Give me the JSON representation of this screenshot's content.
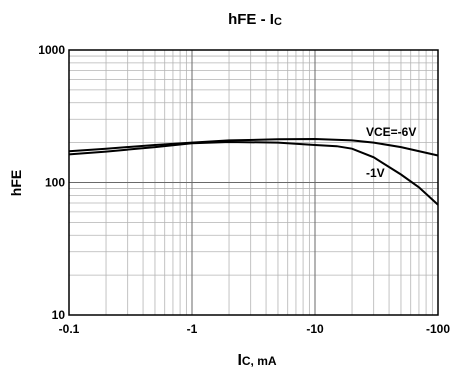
{
  "chart_data": {
    "type": "line",
    "title": "hFE - Ic",
    "title_main": "hFE - I",
    "title_sub": "C",
    "xlabel": "Ic, mA",
    "xlabel_main": "I",
    "xlabel_sub": "C, mA",
    "ylabel": "hFE",
    "x_scale": "log",
    "y_scale": "log",
    "xlim": [
      -0.1,
      -100
    ],
    "ylim": [
      10,
      1000
    ],
    "x_ticks": [
      {
        "value": -0.1,
        "label": "-0.1"
      },
      {
        "value": -1,
        "label": "-1"
      },
      {
        "value": -10,
        "label": "-10"
      },
      {
        "value": -100,
        "label": "-100"
      }
    ],
    "y_ticks": [
      {
        "value": 10,
        "label": "10"
      },
      {
        "value": 100,
        "label": "100"
      },
      {
        "value": 1000,
        "label": "1000"
      }
    ],
    "grid": true,
    "series": [
      {
        "name": "VCE=-6V",
        "x": [
          -0.1,
          -0.2,
          -0.5,
          -1,
          -2,
          -5,
          -10,
          -20,
          -30,
          -50,
          -100
        ],
        "y": [
          172,
          180,
          192,
          200,
          208,
          212,
          213,
          208,
          200,
          185,
          160
        ]
      },
      {
        "name": "-1V",
        "x": [
          -0.1,
          -0.2,
          -0.5,
          -1,
          -2,
          -5,
          -10,
          -15,
          -20,
          -30,
          -50,
          -70,
          -100
        ],
        "y": [
          163,
          171,
          185,
          198,
          202,
          200,
          192,
          188,
          180,
          155,
          115,
          92,
          68
        ]
      }
    ],
    "colors": {
      "line": "#000000",
      "grid": "#b4b4b4",
      "frame": "#000000"
    }
  }
}
